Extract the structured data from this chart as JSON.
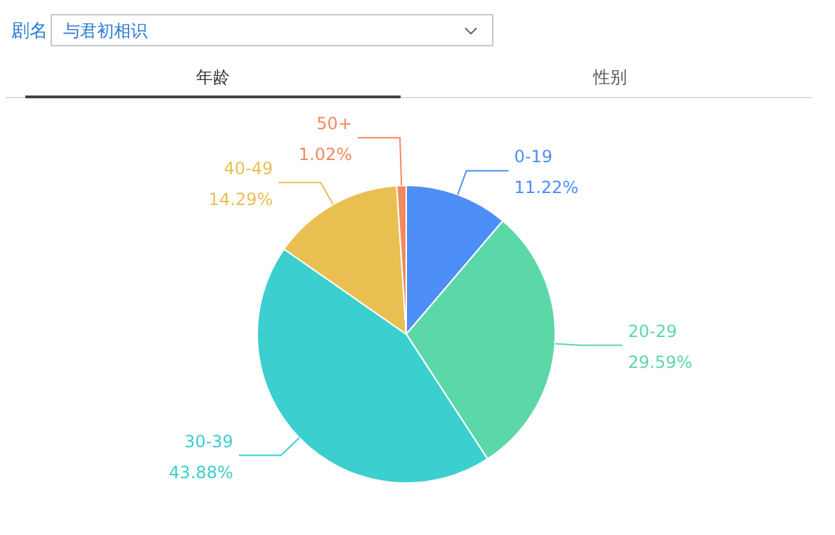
{
  "chart_data": {
    "type": "pie",
    "categories": [
      "0-19",
      "20-29",
      "30-39",
      "40-49",
      "50+"
    ],
    "values": [
      11.22,
      29.59,
      43.88,
      14.29,
      1.02
    ],
    "colors": [
      "#4e8ef7",
      "#5cd8a8",
      "#3ccfcf",
      "#eabf52",
      "#f4895f"
    ],
    "value_labels": [
      "11.22%",
      "29.59%",
      "43.88%",
      "14.29%",
      "1.02%"
    ],
    "annotations": [
      "剧名",
      "与君初相识",
      "年龄",
      "性别"
    ],
    "legend": false
  }
}
